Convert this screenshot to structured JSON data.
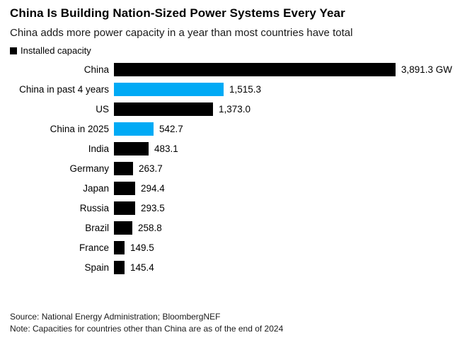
{
  "header": {
    "title": "China Is Building Nation-Sized Power Systems Every Year",
    "subtitle": "China adds more power capacity in a year than most countries have total"
  },
  "legend": {
    "label": "Installed capacity",
    "swatch_color": "#000000"
  },
  "colors": {
    "bar_black": "#000000",
    "bar_cyan": "#00aaf5",
    "title_text": "#000000",
    "body_text": "#1a1a1a",
    "background": "#ffffff"
  },
  "chart_data": {
    "type": "bar",
    "orientation": "horizontal",
    "title": "China Is Building Nation-Sized Power Systems Every Year",
    "subtitle": "China adds more power capacity in a year than most countries have total",
    "legend_entries": [
      "Installed capacity"
    ],
    "legend_position": "top-left",
    "unit": "GW",
    "grid": false,
    "xlim": [
      0,
      3891.3
    ],
    "categories": [
      "China",
      "China in past 4 years",
      "US",
      "China in 2025",
      "India",
      "Germany",
      "Japan",
      "Russia",
      "Brazil",
      "France",
      "Spain"
    ],
    "values": [
      3891.3,
      1515.3,
      1373.0,
      542.7,
      483.1,
      263.7,
      294.4,
      293.5,
      258.8,
      149.5,
      145.4
    ],
    "value_labels": [
      "3,891.3 GW",
      "1,515.3",
      "1,373.0",
      "542.7",
      "483.1",
      "263.7",
      "294.4",
      "293.5",
      "258.8",
      "149.5",
      "145.4"
    ],
    "bar_colors": [
      "#000000",
      "#00aaf5",
      "#000000",
      "#00aaf5",
      "#000000",
      "#000000",
      "#000000",
      "#000000",
      "#000000",
      "#000000",
      "#000000"
    ]
  },
  "footer": {
    "source": "Source: National Energy Administration; BloombergNEF",
    "note": "Note: Capacities for countries other than China are as of the end of 2024"
  }
}
